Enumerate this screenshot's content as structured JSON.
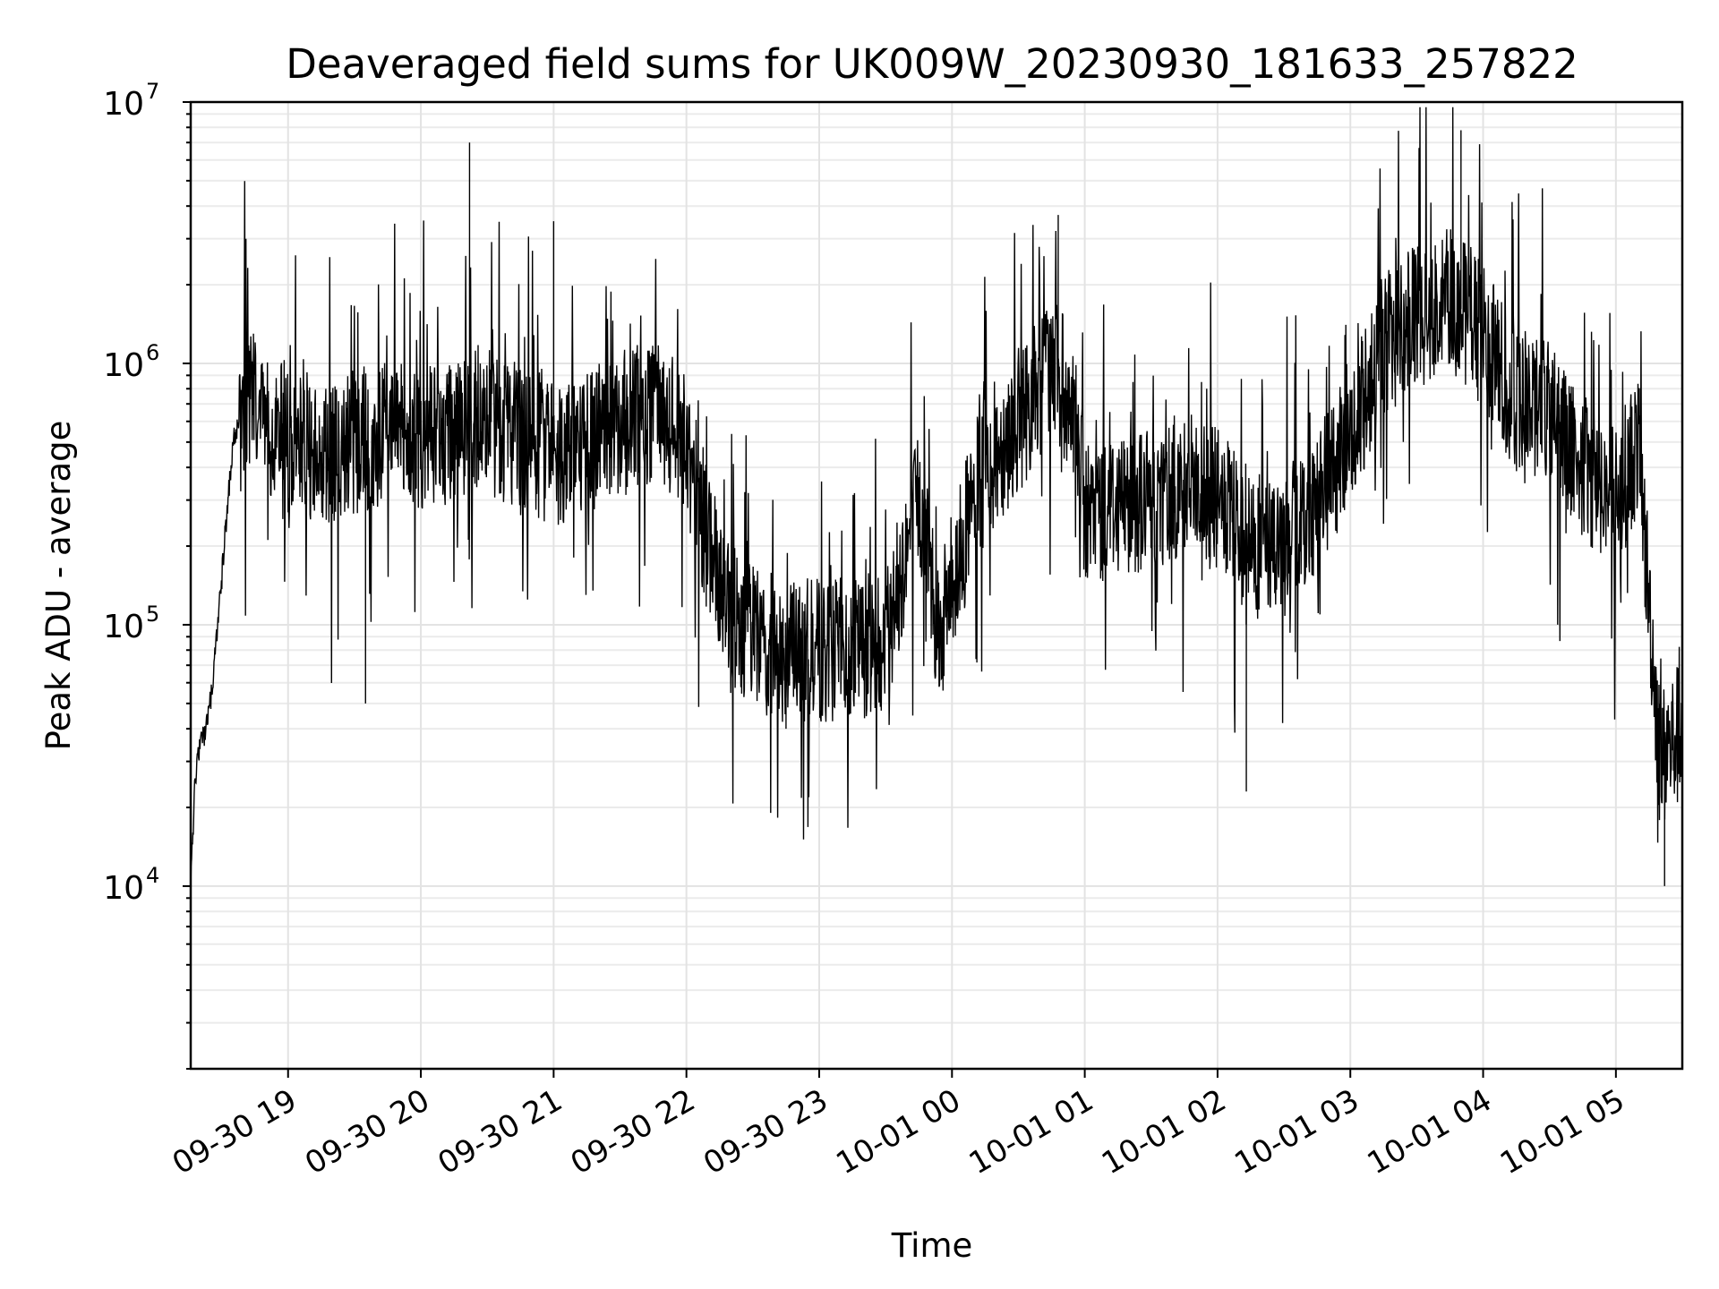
{
  "chart_data": {
    "type": "line",
    "title": "Deaveraged field sums for UK009W_20230930_181633_257822",
    "xlabel": "Time",
    "ylabel": "Peak ADU - average",
    "yscale": "log",
    "ylim": [
      2000,
      10000000
    ],
    "xlim": [
      "2023-09-30 18:16",
      "2023-10-01 05:30"
    ],
    "grid": true,
    "grid_minor": true,
    "line_color": "#000000",
    "x_ticks": [
      "09-30 19",
      "09-30 20",
      "09-30 21",
      "09-30 22",
      "09-30 23",
      "10-01 00",
      "10-01 01",
      "10-01 02",
      "10-01 03",
      "10-01 04",
      "10-01 05"
    ],
    "y_ticks": [
      {
        "base": "10",
        "exp": "4",
        "value": 10000
      },
      {
        "base": "10",
        "exp": "5",
        "value": 100000
      },
      {
        "base": "10",
        "exp": "6",
        "value": 1000000
      },
      {
        "base": "10",
        "exp": "7",
        "value": 10000000
      }
    ],
    "series": [
      {
        "x": [
          "2023-09-30 18:16",
          "2023-09-30 18:18",
          "2023-09-30 18:20",
          "2023-09-30 18:23",
          "2023-09-30 18:26",
          "2023-09-30 18:30",
          "2023-09-30 18:35",
          "2023-09-30 18:40",
          "2023-09-30 18:45",
          "2023-09-30 18:50",
          "2023-09-30 18:55",
          "2023-09-30 19:00",
          "2023-09-30 19:15",
          "2023-09-30 19:30",
          "2023-09-30 19:45",
          "2023-09-30 20:00",
          "2023-09-30 20:15",
          "2023-09-30 20:30",
          "2023-09-30 20:45",
          "2023-09-30 21:00",
          "2023-09-30 21:15",
          "2023-09-30 21:30",
          "2023-09-30 21:45",
          "2023-09-30 22:00",
          "2023-09-30 22:10",
          "2023-09-30 22:20",
          "2023-09-30 22:30",
          "2023-09-30 22:45",
          "2023-09-30 23:00",
          "2023-09-30 23:15",
          "2023-09-30 23:30",
          "2023-09-30 23:45",
          "2023-09-30 23:55",
          "2023-10-01 00:00",
          "2023-10-01 00:15",
          "2023-10-01 00:30",
          "2023-10-01 00:45",
          "2023-10-01 00:55",
          "2023-10-01 01:00",
          "2023-10-01 01:15",
          "2023-10-01 01:30",
          "2023-10-01 01:45",
          "2023-10-01 02:00",
          "2023-10-01 02:15",
          "2023-10-01 02:30",
          "2023-10-01 02:45",
          "2023-10-01 03:00",
          "2023-10-01 03:15",
          "2023-10-01 03:30",
          "2023-10-01 03:45",
          "2023-10-01 04:00",
          "2023-10-01 04:15",
          "2023-10-01 04:30",
          "2023-10-01 04:45",
          "2023-10-01 05:00",
          "2023-10-01 05:10",
          "2023-10-01 05:20",
          "2023-10-01 05:30"
        ],
        "y": [
          10000,
          25000,
          35000,
          40000,
          60000,
          150000,
          500000,
          650000,
          700000,
          600000,
          550000,
          500000,
          450000,
          500000,
          550000,
          500000,
          550000,
          600000,
          500000,
          450000,
          500000,
          600000,
          650000,
          500000,
          200000,
          100000,
          90000,
          80000,
          80000,
          80000,
          90000,
          300000,
          90000,
          150000,
          400000,
          600000,
          1000000,
          700000,
          250000,
          300000,
          300000,
          350000,
          300000,
          200000,
          200000,
          300000,
          500000,
          1200000,
          1500000,
          1800000,
          1300000,
          700000,
          700000,
          400000,
          300000,
          500000,
          30000,
          40000
        ]
      }
    ]
  }
}
